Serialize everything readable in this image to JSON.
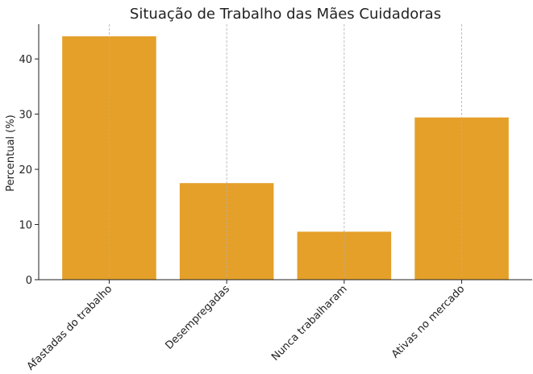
{
  "chart_data": {
    "type": "bar",
    "title": "Situação de Trabalho das Mães Cuidadoras",
    "ylabel": "Percentual (%)",
    "categories": [
      "Afastadas do trabalho",
      "Desempregadas",
      "Nunca trabalharam",
      "Ativas no mercado"
    ],
    "values": [
      44.1,
      17.5,
      8.7,
      29.4
    ],
    "color": "#e5a02a",
    "ylim": [
      0,
      46.3
    ],
    "yticks": [
      0,
      10,
      20,
      30,
      40
    ],
    "grid": "x"
  }
}
